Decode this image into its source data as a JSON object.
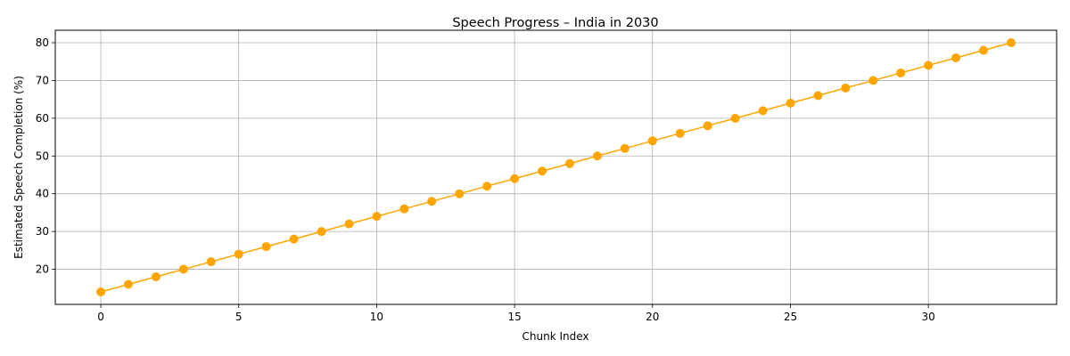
{
  "chart_data": {
    "type": "line",
    "title": "Speech Progress – India in 2030",
    "xlabel": "Chunk Index",
    "ylabel": "Estimated Speech Completion (%)",
    "xlim": [
      -1.65,
      34.65
    ],
    "ylim": [
      10.7,
      83.3
    ],
    "x_ticks": [
      0,
      5,
      10,
      15,
      20,
      25,
      30
    ],
    "y_ticks": [
      20,
      30,
      40,
      50,
      60,
      70,
      80
    ],
    "grid": true,
    "legend": "none",
    "series": [
      {
        "color": "#FFA500",
        "marker": "circle",
        "x": [
          0,
          1,
          2,
          3,
          4,
          5,
          6,
          7,
          8,
          9,
          10,
          11,
          12,
          13,
          14,
          15,
          16,
          17,
          18,
          19,
          20,
          21,
          22,
          23,
          24,
          25,
          26,
          27,
          28,
          29,
          30,
          31,
          32,
          33
        ],
        "values": [
          14,
          16,
          18,
          20,
          22,
          24,
          26,
          28,
          30,
          32,
          34,
          36,
          38,
          40,
          42,
          44,
          46,
          48,
          50,
          52,
          54,
          56,
          58,
          60,
          62,
          64,
          66,
          68,
          70,
          72,
          74,
          76,
          78,
          80
        ]
      }
    ]
  }
}
